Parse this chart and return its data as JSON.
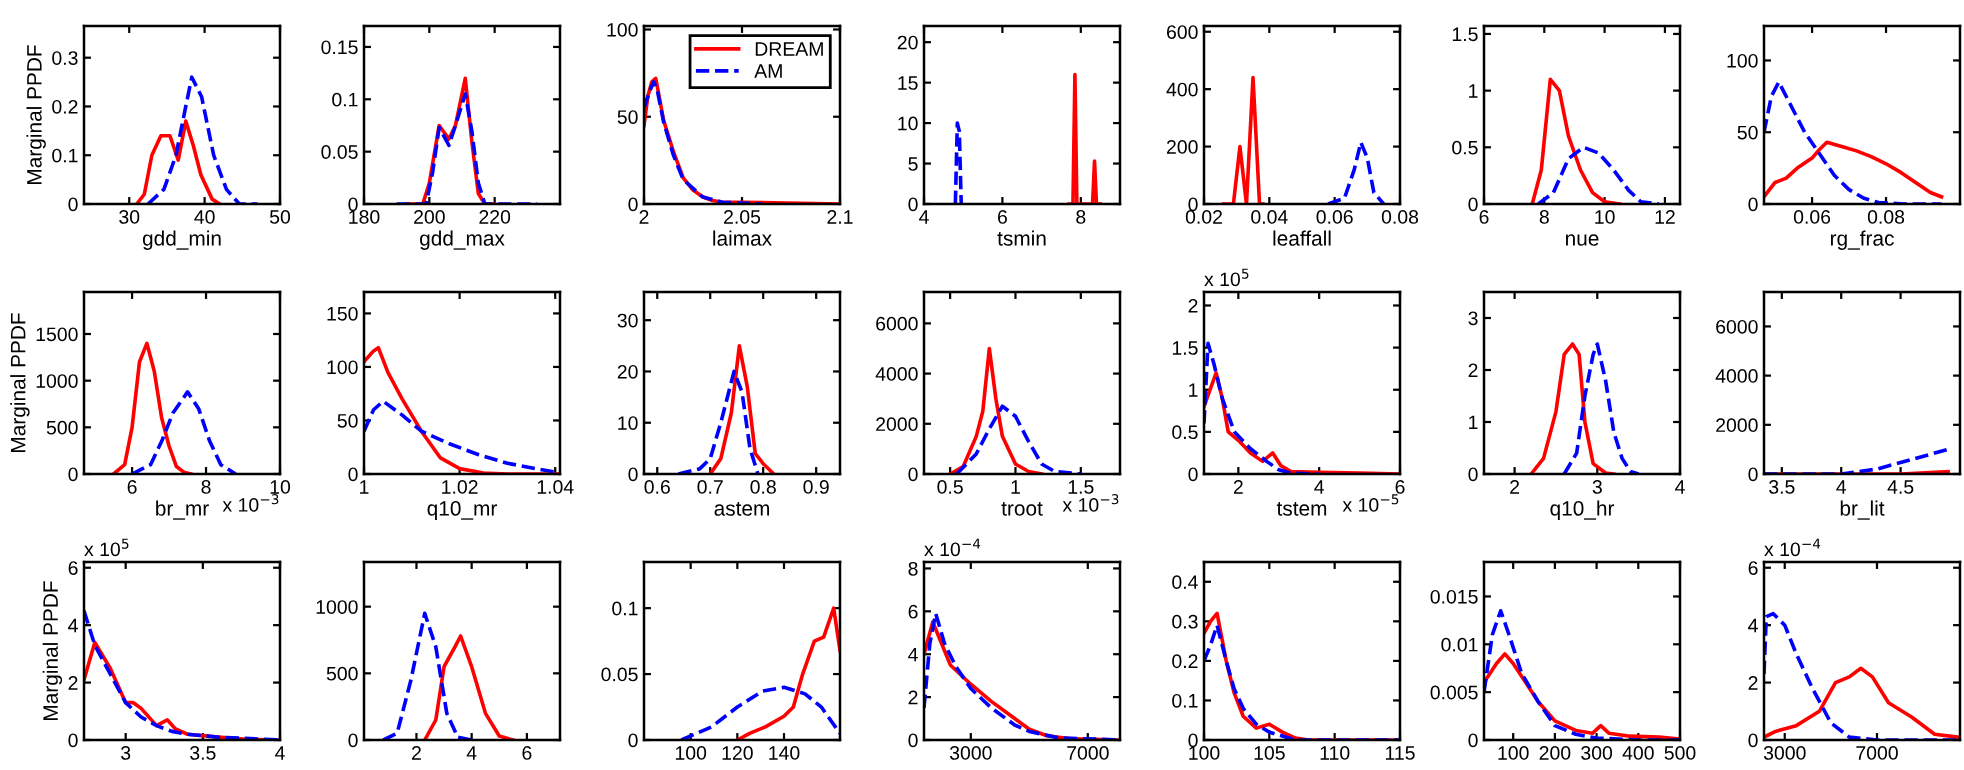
{
  "chart_data": [
    {
      "type": "line",
      "xlabel": "gdd_min",
      "ylabel": "Marginal PPDF",
      "xlim": [
        24,
        50
      ],
      "xticks": [
        30,
        40,
        50
      ],
      "ylim": [
        0,
        0.365
      ],
      "yticks": [
        0,
        0.1,
        0.2,
        0.3
      ],
      "series": [
        {
          "color": "#ff0000",
          "line_style": "solid",
          "x": [
            31,
            32,
            33,
            34.2,
            35.4,
            36.5,
            37.5,
            38.5,
            39.5,
            41,
            42
          ],
          "values": [
            0,
            0.02,
            0.1,
            0.14,
            0.14,
            0.09,
            0.17,
            0.12,
            0.06,
            0.01,
            0
          ]
        },
        {
          "color": "#0000ff",
          "line_style": "dashed",
          "x": [
            32.5,
            34.6,
            36.2,
            37.5,
            38.3,
            39.6,
            41.2,
            42.9,
            44.6,
            47
          ],
          "values": [
            0,
            0.03,
            0.1,
            0.2,
            0.26,
            0.22,
            0.1,
            0.03,
            0,
            0
          ]
        }
      ]
    },
    {
      "type": "line",
      "xlabel": "gdd_max",
      "xlim": [
        180,
        240
      ],
      "xticks": [
        180,
        200,
        220
      ],
      "ylim": [
        0,
        0.17
      ],
      "yticks": [
        0,
        0.05,
        0.1,
        0.15
      ],
      "series": [
        {
          "color": "#ff0000",
          "line_style": "solid",
          "x": [
            193,
            198,
            200,
            203,
            206,
            208,
            211,
            213,
            215,
            217,
            220
          ],
          "values": [
            0,
            0,
            0.02,
            0.075,
            0.062,
            0.075,
            0.12,
            0.06,
            0.01,
            0,
            0
          ]
        },
        {
          "color": "#0000ff",
          "line_style": "dashed",
          "x": [
            190,
            199,
            201,
            203,
            206,
            208,
            211,
            213,
            215,
            217,
            233
          ],
          "values": [
            0,
            0,
            0.03,
            0.073,
            0.056,
            0.075,
            0.105,
            0.07,
            0.02,
            0,
            0
          ]
        }
      ]
    },
    {
      "type": "line",
      "xlabel": "laimax",
      "xlim": [
        2,
        2.1
      ],
      "xticks": [
        2,
        2.05,
        2.1
      ],
      "ylim": [
        0,
        102
      ],
      "yticks": [
        0,
        50,
        100
      ],
      "legend": "top right",
      "series": [
        {
          "name": "DREAM",
          "color": "#ff0000",
          "line_style": "solid",
          "x": [
            2.0,
            2.002,
            2.004,
            2.006,
            2.01,
            2.015,
            2.02,
            2.025,
            2.03,
            2.035,
            2.04,
            2.05,
            2.1
          ],
          "values": [
            45,
            62,
            70,
            72,
            48,
            30,
            15,
            8,
            4,
            2,
            1,
            1,
            0
          ]
        },
        {
          "name": "AM",
          "color": "#0000ff",
          "line_style": "dashed",
          "x": [
            2.0,
            2.003,
            2.005,
            2.007,
            2.01,
            2.015,
            2.02,
            2.03,
            2.04,
            2.06
          ],
          "values": [
            55,
            65,
            70,
            64,
            47,
            28,
            14,
            4,
            1,
            0
          ]
        }
      ]
    },
    {
      "type": "line",
      "xlabel": "tsmin",
      "xlim": [
        4,
        9
      ],
      "xticks": [
        4,
        6,
        8
      ],
      "ylim": [
        0,
        22
      ],
      "yticks": [
        0,
        5,
        10,
        15,
        20
      ],
      "series": [
        {
          "color": "#ff0000",
          "line_style": "solid",
          "x": [
            7.7,
            7.8,
            7.85,
            7.9,
            8.3,
            8.35,
            8.4,
            8.5
          ],
          "values": [
            0,
            0,
            16,
            0,
            0,
            5.3,
            0,
            0
          ]
        },
        {
          "color": "#0000ff",
          "line_style": "dashed",
          "x": [
            4.8,
            4.85,
            4.9,
            4.95
          ],
          "values": [
            0,
            10,
            9,
            0
          ]
        }
      ]
    },
    {
      "type": "line",
      "xlabel": "leaffall",
      "xlim": [
        0.02,
        0.08
      ],
      "xticks": [
        0.02,
        0.04,
        0.06,
        0.08
      ],
      "ylim": [
        0,
        620
      ],
      "yticks": [
        0,
        200,
        400,
        600
      ],
      "series": [
        {
          "color": "#ff0000",
          "line_style": "solid",
          "x": [
            0.026,
            0.029,
            0.031,
            0.033,
            0.035,
            0.037,
            0.038
          ],
          "values": [
            0,
            0,
            200,
            0,
            440,
            0,
            0
          ]
        },
        {
          "color": "#0000ff",
          "line_style": "dashed",
          "x": [
            0.058,
            0.063,
            0.066,
            0.068,
            0.07,
            0.072,
            0.075
          ],
          "values": [
            0,
            20,
            120,
            215,
            160,
            40,
            0
          ]
        }
      ]
    },
    {
      "type": "line",
      "xlabel": "nue",
      "xlim": [
        6,
        12.5
      ],
      "xticks": [
        6,
        8,
        10,
        12
      ],
      "ylim": [
        0,
        1.57
      ],
      "yticks": [
        0,
        0.5,
        1,
        1.5
      ],
      "series": [
        {
          "color": "#ff0000",
          "line_style": "solid",
          "x": [
            7.6,
            7.9,
            8.2,
            8.5,
            8.8,
            9.2,
            9.6,
            10,
            10.5
          ],
          "values": [
            0,
            0.3,
            1.1,
            1.0,
            0.6,
            0.3,
            0.1,
            0.02,
            0
          ]
        },
        {
          "color": "#0000ff",
          "line_style": "dashed",
          "x": [
            7.8,
            8.3,
            8.8,
            9.3,
            9.8,
            10.3,
            10.8,
            11.2,
            11.8
          ],
          "values": [
            0,
            0.1,
            0.4,
            0.5,
            0.45,
            0.3,
            0.12,
            0.02,
            0
          ]
        }
      ]
    },
    {
      "type": "line",
      "xlabel": "rg_frac",
      "xlim": [
        0.047,
        0.1
      ],
      "xticks": [
        0.06,
        0.08
      ],
      "ylim": [
        0,
        124
      ],
      "yticks": [
        0,
        50,
        100
      ],
      "series": [
        {
          "color": "#ff0000",
          "line_style": "solid",
          "x": [
            0.047,
            0.05,
            0.053,
            0.056,
            0.06,
            0.062,
            0.064,
            0.068,
            0.072,
            0.076,
            0.08,
            0.084,
            0.088,
            0.092,
            0.095
          ],
          "values": [
            5,
            15,
            18,
            25,
            32,
            38,
            43,
            40,
            37,
            33,
            28,
            22,
            15,
            8,
            5
          ]
        },
        {
          "color": "#0000ff",
          "line_style": "dashed",
          "x": [
            0.047,
            0.049,
            0.051,
            0.054,
            0.058,
            0.062,
            0.066,
            0.07,
            0.074,
            0.078,
            0.085,
            0.095
          ],
          "values": [
            50,
            75,
            85,
            70,
            50,
            35,
            20,
            10,
            4,
            1,
            0,
            0
          ]
        }
      ]
    },
    {
      "type": "line",
      "xlabel": "br_mr",
      "ylabel": "Marginal PPDF",
      "annotations": [
        "x 10$^{−3}$"
      ],
      "xlim": [
        4.7,
        10
      ],
      "xticks": [
        6,
        8,
        10
      ],
      "ylim": [
        0,
        1950
      ],
      "yticks": [
        0,
        500,
        1000,
        1500
      ],
      "series": [
        {
          "color": "#ff0000",
          "line_style": "solid",
          "x": [
            5.5,
            5.8,
            6.0,
            6.2,
            6.4,
            6.6,
            6.8,
            7.0,
            7.2,
            7.4,
            7.6
          ],
          "values": [
            0,
            100,
            500,
            1200,
            1400,
            1100,
            600,
            300,
            80,
            20,
            0
          ]
        },
        {
          "color": "#0000ff",
          "line_style": "dashed",
          "x": [
            6.0,
            6.5,
            6.8,
            7.1,
            7.5,
            7.8,
            8.1,
            8.4,
            8.8
          ],
          "values": [
            0,
            100,
            350,
            650,
            880,
            700,
            350,
            100,
            0
          ]
        }
      ]
    },
    {
      "type": "line",
      "xlabel": "q10_mr",
      "xlim": [
        1,
        1.041
      ],
      "xticks": [
        1,
        1.02,
        1.04
      ],
      "ylim": [
        0,
        170
      ],
      "yticks": [
        0,
        50,
        100,
        150
      ],
      "series": [
        {
          "color": "#ff0000",
          "line_style": "solid",
          "x": [
            1,
            1.002,
            1.003,
            1.005,
            1.008,
            1.012,
            1.016,
            1.02,
            1.025,
            1.03,
            1.041
          ],
          "values": [
            105,
            115,
            118,
            95,
            70,
            40,
            15,
            5,
            1,
            0,
            0
          ]
        },
        {
          "color": "#0000ff",
          "line_style": "dashed",
          "x": [
            1,
            1.002,
            1.004,
            1.008,
            1.012,
            1.018,
            1.024,
            1.03,
            1.036,
            1.041
          ],
          "values": [
            40,
            60,
            68,
            55,
            40,
            28,
            18,
            10,
            5,
            1
          ]
        }
      ]
    },
    {
      "type": "line",
      "xlabel": "astem",
      "xlim": [
        0.575,
        0.945
      ],
      "xticks": [
        0.6,
        0.7,
        0.8,
        0.9
      ],
      "ylim": [
        0,
        35.5
      ],
      "yticks": [
        0,
        10,
        20,
        30
      ],
      "series": [
        {
          "color": "#ff0000",
          "line_style": "solid",
          "x": [
            0.7,
            0.72,
            0.74,
            0.755,
            0.77,
            0.785,
            0.8,
            0.82
          ],
          "values": [
            0,
            3,
            12,
            25,
            17,
            4,
            2,
            0
          ]
        },
        {
          "color": "#0000ff",
          "line_style": "dashed",
          "x": [
            0.64,
            0.68,
            0.7,
            0.72,
            0.745,
            0.76,
            0.775,
            0.79
          ],
          "values": [
            0,
            1,
            3,
            10,
            20,
            16,
            5,
            0
          ]
        }
      ]
    },
    {
      "type": "line",
      "xlabel": "troot",
      "annotations": [
        "x 10$^{−3}$"
      ],
      "xlim": [
        0.3,
        1.8
      ],
      "xticks": [
        0.5,
        1,
        1.5
      ],
      "ylim": [
        0,
        7250
      ],
      "yticks": [
        0,
        2000,
        4000,
        6000
      ],
      "series": [
        {
          "color": "#ff0000",
          "line_style": "solid",
          "x": [
            0.5,
            0.6,
            0.7,
            0.75,
            0.8,
            0.85,
            0.9,
            1.0,
            1.1,
            1.2
          ],
          "values": [
            0,
            300,
            1500,
            2500,
            5000,
            3000,
            1500,
            400,
            100,
            0
          ]
        },
        {
          "color": "#0000ff",
          "line_style": "dashed",
          "x": [
            0.55,
            0.7,
            0.8,
            0.9,
            1.0,
            1.1,
            1.2,
            1.3,
            1.5
          ],
          "values": [
            0,
            800,
            1800,
            2700,
            2300,
            1300,
            400,
            100,
            0
          ]
        }
      ]
    },
    {
      "type": "line",
      "xlabel": "tstem",
      "annotations": [
        "x 10$^{5}$",
        "x 10$^{−5}$"
      ],
      "xlim": [
        1.15,
        6
      ],
      "xticks": [
        2,
        4,
        6
      ],
      "ylim": [
        0,
        2.16
      ],
      "yticks": [
        0,
        0.5,
        1,
        1.5,
        2
      ],
      "series": [
        {
          "color": "#ff0000",
          "line_style": "solid",
          "x": [
            1.15,
            1.3,
            1.45,
            1.6,
            1.75,
            2.0,
            2.3,
            2.6,
            2.85,
            3.05,
            3.3,
            4,
            5,
            6
          ],
          "values": [
            0.8,
            1.0,
            1.2,
            0.9,
            0.5,
            0.4,
            0.25,
            0.15,
            0.25,
            0.1,
            0.03,
            0.02,
            0.01,
            0
          ]
        },
        {
          "color": "#0000ff",
          "line_style": "dashed",
          "x": [
            1.15,
            1.25,
            1.4,
            1.6,
            1.9,
            2.3,
            2.7,
            3.0,
            3.3,
            4
          ],
          "values": [
            0.6,
            1.55,
            1.3,
            0.9,
            0.5,
            0.3,
            0.15,
            0.05,
            0.01,
            0
          ]
        }
      ]
    },
    {
      "type": "line",
      "xlabel": "q10_hr",
      "xlim": [
        1.63,
        4
      ],
      "xticks": [
        2,
        3,
        4
      ],
      "ylim": [
        0,
        3.5
      ],
      "yticks": [
        0,
        1,
        2,
        3
      ],
      "series": [
        {
          "color": "#ff0000",
          "line_style": "solid",
          "x": [
            2.2,
            2.35,
            2.5,
            2.6,
            2.7,
            2.78,
            2.85,
            2.95,
            3.1,
            3.2
          ],
          "values": [
            0,
            0.3,
            1.2,
            2.3,
            2.5,
            2.3,
            1.0,
            0.2,
            0.02,
            0
          ]
        },
        {
          "color": "#0000ff",
          "line_style": "dashed",
          "x": [
            2.6,
            2.75,
            2.85,
            2.95,
            3.0,
            3.1,
            3.2,
            3.3,
            3.4,
            3.5
          ],
          "values": [
            0,
            0.4,
            1.5,
            2.3,
            2.5,
            1.8,
            0.8,
            0.3,
            0.05,
            0
          ]
        }
      ]
    },
    {
      "type": "line",
      "xlabel": "br_lit",
      "xlim": [
        3.35,
        5
      ],
      "xticks": [
        3.5,
        4,
        4.5
      ],
      "ylim": [
        0,
        7400
      ],
      "yticks": [
        0,
        2000,
        4000,
        6000
      ],
      "series": [
        {
          "color": "#ff0000",
          "line_style": "solid",
          "x": [
            3.35,
            4.5,
            4.9
          ],
          "values": [
            0,
            0,
            100
          ]
        },
        {
          "color": "#0000ff",
          "line_style": "dashed",
          "x": [
            3.35,
            3.8,
            4.0,
            4.3,
            4.6,
            4.9
          ],
          "values": [
            0,
            0,
            0,
            200,
            600,
            1000
          ]
        }
      ]
    },
    {
      "type": "line",
      "ylabel": "Marginal PPDF",
      "annotations": [
        "x 10$^{5}$"
      ],
      "xlim": [
        2.73,
        4
      ],
      "xticks": [
        3,
        3.5,
        4
      ],
      "ylim": [
        0,
        6.2
      ],
      "yticks": [
        0,
        2,
        4,
        6
      ],
      "series": [
        {
          "color": "#ff0000",
          "line_style": "solid",
          "x": [
            2.73,
            2.8,
            2.9,
            3.0,
            3.05,
            3.1,
            3.2,
            3.27,
            3.32,
            3.4,
            3.6,
            3.8,
            4
          ],
          "values": [
            2.1,
            3.4,
            2.5,
            1.3,
            1.3,
            1.1,
            0.5,
            0.7,
            0.4,
            0.2,
            0.1,
            0.02,
            0
          ]
        },
        {
          "color": "#0000ff",
          "line_style": "dashed",
          "x": [
            2.73,
            2.8,
            2.9,
            3.0,
            3.1,
            3.2,
            3.3,
            3.4,
            3.6,
            4.0
          ],
          "values": [
            4.5,
            3.3,
            2.3,
            1.3,
            0.8,
            0.5,
            0.3,
            0.2,
            0.1,
            0
          ]
        }
      ]
    },
    {
      "type": "line",
      "xlim": [
        0.1,
        7.2
      ],
      "xticks": [
        2,
        4,
        6
      ],
      "ylim": [
        0,
        1335
      ],
      "yticks": [
        0,
        500,
        1000
      ],
      "series": [
        {
          "color": "#ff0000",
          "line_style": "solid",
          "x": [
            2.3,
            2.7,
            3.0,
            3.4,
            3.6,
            4.0,
            4.5,
            5.0,
            5.5
          ],
          "values": [
            0,
            150,
            550,
            700,
            780,
            550,
            200,
            30,
            0
          ]
        },
        {
          "color": "#0000ff",
          "line_style": "dashed",
          "x": [
            0.8,
            1.3,
            1.8,
            2.3,
            2.7,
            3.1,
            3.5,
            4
          ],
          "values": [
            0,
            50,
            450,
            950,
            700,
            200,
            20,
            0
          ]
        }
      ]
    },
    {
      "type": "line",
      "xlim": [
        80,
        164
      ],
      "xticks": [
        100,
        120,
        140
      ],
      "ylim": [
        0,
        0.135
      ],
      "yticks": [
        0,
        0.05,
        0.1
      ],
      "series": [
        {
          "color": "#ff0000",
          "line_style": "solid",
          "x": [
            120,
            125.3,
            132,
            140,
            144,
            148,
            153,
            157,
            161.3,
            164
          ],
          "values": [
            0,
            0.005,
            0.01,
            0.018,
            0.025,
            0.05,
            0.075,
            0.078,
            0.1,
            0.068
          ]
        },
        {
          "color": "#0000ff",
          "line_style": "dashed",
          "x": [
            96,
            109,
            120,
            130.7,
            140,
            149,
            156,
            164
          ],
          "values": [
            0,
            0.01,
            0.025,
            0.037,
            0.04,
            0.035,
            0.025,
            0.005
          ]
        }
      ]
    },
    {
      "type": "line",
      "annotations": [
        "x 10$^{−4}$"
      ],
      "xlim": [
        1400,
        8100
      ],
      "xticks": [
        3000,
        7000
      ],
      "ylim": [
        0,
        8.3
      ],
      "yticks": [
        0,
        2,
        4,
        6,
        8
      ],
      "series": [
        {
          "color": "#ff0000",
          "line_style": "solid",
          "x": [
            1400,
            1700,
            2000,
            2300,
            3000,
            3700,
            4500,
            5000,
            5600,
            6500,
            8100
          ],
          "values": [
            4,
            5.5,
            4.5,
            3.5,
            2.6,
            1.8,
            1.0,
            0.5,
            0.2,
            0.05,
            0
          ]
        },
        {
          "color": "#0000ff",
          "line_style": "dashed",
          "x": [
            1400,
            1600,
            1800,
            2100,
            2500,
            3000,
            3700,
            4500,
            5000,
            6000,
            8100
          ],
          "values": [
            1.5,
            4.5,
            5.9,
            4.5,
            3.4,
            2.4,
            1.5,
            0.7,
            0.4,
            0.1,
            0
          ]
        }
      ]
    },
    {
      "type": "line",
      "xlim": [
        100,
        115
      ],
      "xticks": [
        100,
        105,
        110,
        115
      ],
      "ylim": [
        0,
        0.45
      ],
      "yticks": [
        0,
        0.1,
        0.2,
        0.3,
        0.4
      ],
      "series": [
        {
          "color": "#ff0000",
          "line_style": "solid",
          "x": [
            100,
            100.5,
            101,
            101.7,
            102.3,
            103,
            104,
            105,
            106,
            107,
            108,
            115
          ],
          "values": [
            0.27,
            0.3,
            0.32,
            0.2,
            0.12,
            0.06,
            0.03,
            0.04,
            0.02,
            0.005,
            0,
            0
          ]
        },
        {
          "color": "#0000ff",
          "line_style": "dashed",
          "x": [
            100,
            100.5,
            101,
            101.7,
            102.3,
            103,
            104,
            105,
            106,
            107,
            115
          ],
          "values": [
            0.2,
            0.24,
            0.29,
            0.2,
            0.13,
            0.08,
            0.04,
            0.02,
            0.01,
            0,
            0
          ]
        }
      ]
    },
    {
      "type": "line",
      "xlim": [
        30,
        500
      ],
      "xticks": [
        100,
        200,
        300,
        400,
        500
      ],
      "ylim": [
        0,
        0.0186
      ],
      "yticks": [
        0,
        0.005,
        0.01,
        0.015
      ],
      "series": [
        {
          "color": "#ff0000",
          "line_style": "solid",
          "x": [
            30,
            60,
            80,
            100,
            130,
            160,
            200,
            250,
            290,
            310,
            330,
            380,
            450,
            500
          ],
          "values": [
            0.006,
            0.008,
            0.009,
            0.008,
            0.006,
            0.004,
            0.002,
            0.001,
            0.0007,
            0.0015,
            0.0007,
            0.0004,
            0.0003,
            0.0001
          ]
        },
        {
          "color": "#0000ff",
          "line_style": "dashed",
          "x": [
            30,
            50,
            70,
            90,
            120,
            160,
            200,
            250,
            300,
            400,
            500
          ],
          "values": [
            0.005,
            0.011,
            0.0135,
            0.011,
            0.007,
            0.004,
            0.0015,
            0.0006,
            0.0002,
            0,
            0
          ]
        }
      ]
    },
    {
      "type": "line",
      "annotations": [
        "x 10$^{−4}$"
      ],
      "xlim": [
        2100,
        10600
      ],
      "xticks": [
        3000,
        7000
      ],
      "ylim": [
        0,
        6.2
      ],
      "yticks": [
        0,
        2,
        4,
        6
      ],
      "series": [
        {
          "color": "#ff0000",
          "line_style": "solid",
          "x": [
            2100,
            2600,
            3500,
            4500,
            5200,
            5800,
            6300,
            6800,
            7500,
            8500,
            9500,
            10500
          ],
          "values": [
            0.1,
            0.3,
            0.5,
            1.0,
            2.0,
            2.2,
            2.5,
            2.2,
            1.3,
            0.8,
            0.2,
            0.1
          ]
        },
        {
          "color": "#0000ff",
          "line_style": "dashed",
          "x": [
            2100,
            2200,
            2500,
            3000,
            3500,
            4200,
            5000,
            5800,
            7000,
            10600
          ],
          "values": [
            2.3,
            4.3,
            4.4,
            4.0,
            3.0,
            1.8,
            0.6,
            0.1,
            0,
            0
          ]
        }
      ]
    }
  ]
}
